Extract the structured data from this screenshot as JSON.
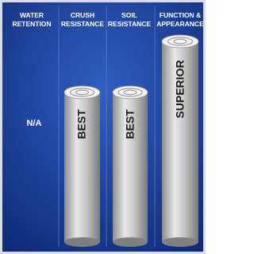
{
  "columns": [
    {
      "header": [
        "WATER",
        "RETENTION"
      ],
      "rating": "N/A"
    },
    {
      "header": [
        "CRUSH",
        "RESISTANCE"
      ],
      "rating": "BEST"
    },
    {
      "header": [
        "SOIL",
        "RESISTANCE"
      ],
      "rating": "BEST"
    },
    {
      "header": [
        "FUNCTION &",
        "APPEARANCE"
      ],
      "rating": "SUPERIOR"
    }
  ]
}
